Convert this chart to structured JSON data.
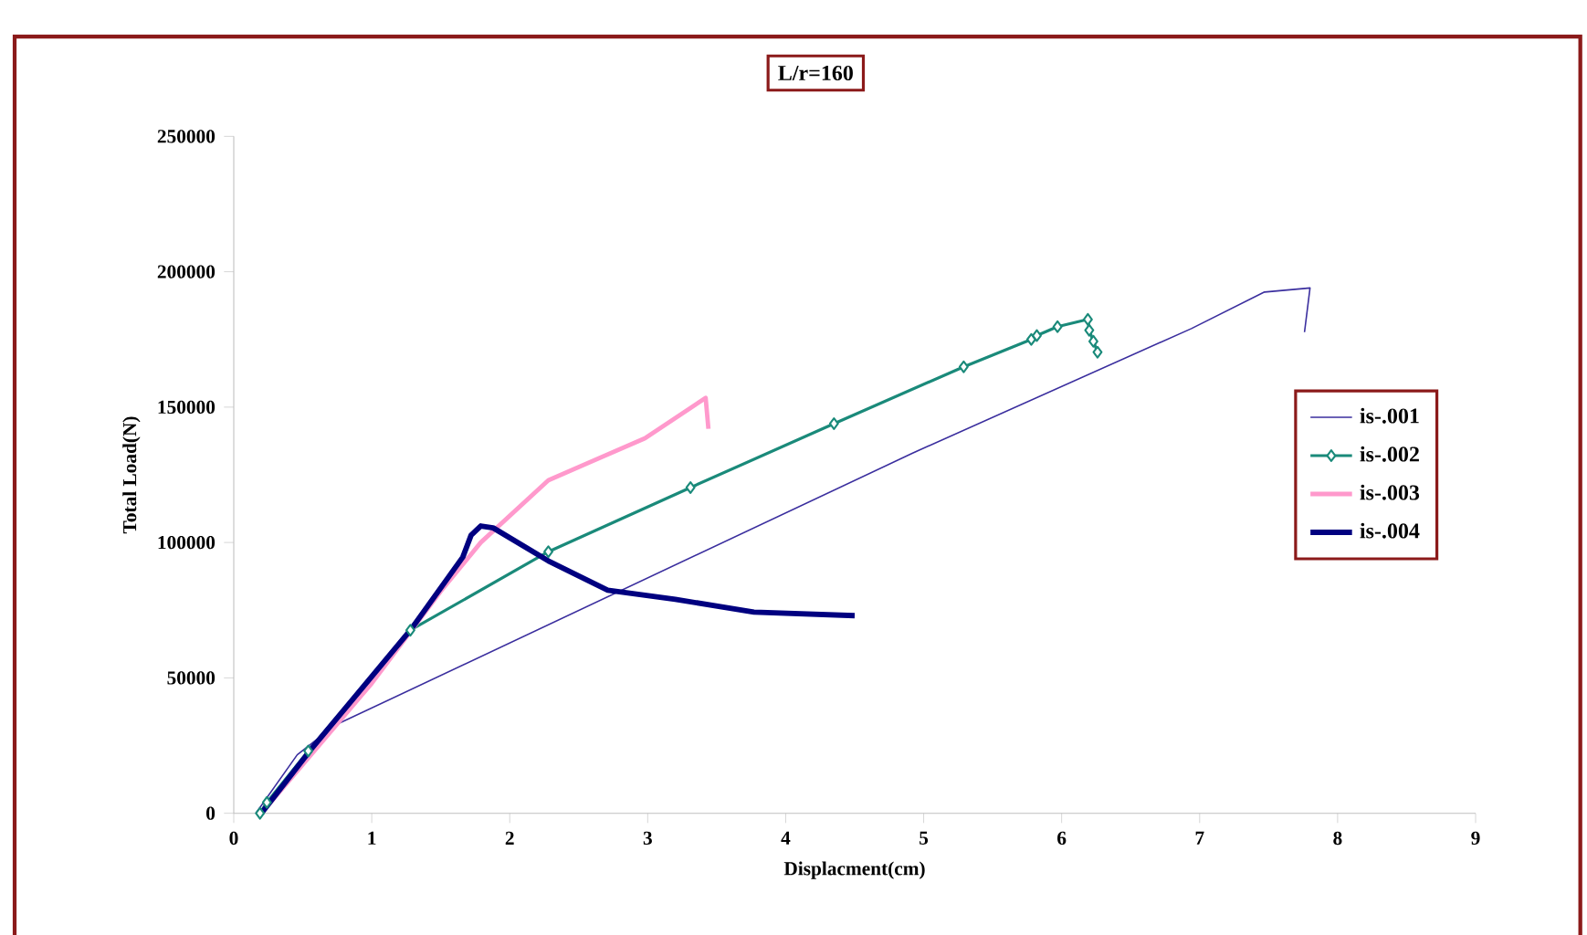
{
  "chart_data": {
    "type": "line",
    "title": "L/r=160",
    "xlabel": "Displacment(cm)",
    "ylabel": "Total Load(N)",
    "xlim": [
      0,
      9
    ],
    "xticks": [
      0,
      1,
      2,
      3,
      4,
      5,
      6,
      7,
      8,
      9
    ],
    "ylim": [
      0,
      250000
    ],
    "yticks": [
      0,
      50000,
      100000,
      150000,
      200000,
      250000
    ],
    "grid": false,
    "legend": "right",
    "series": [
      {
        "name": "is-.001",
        "color": "#3a2e9e",
        "marker": "none",
        "x": [
          0.16,
          0.46,
          0.73,
          4.92,
          6.94,
          7.47,
          7.8,
          7.76
        ],
        "values": [
          0,
          21600,
          32400,
          133000,
          179000,
          192500,
          194000,
          177700
        ]
      },
      {
        "name": "is-.002",
        "color": "#1a8a7a",
        "marker": "diamond",
        "x": [
          0.19,
          0.24,
          0.54,
          1.28,
          2.28,
          3.31,
          4.35,
          5.29,
          5.78,
          5.82,
          5.97,
          6.19,
          6.2,
          6.23,
          6.26
        ],
        "values": [
          0,
          4000,
          23000,
          67600,
          96600,
          120300,
          143900,
          164900,
          175000,
          176400,
          179700,
          182400,
          178400,
          174300,
          170300
        ]
      },
      {
        "name": "is-.003",
        "color": "#ff99cc",
        "marker": "none",
        "x": [
          0.2,
          0.55,
          1.0,
          1.5,
          1.79,
          2.28,
          2.98,
          3.42,
          3.44
        ],
        "values": [
          0,
          null,
          48000,
          82000,
          100000,
          123000,
          138500,
          153400,
          142000
        ]
      },
      {
        "name": "is-.004",
        "color": "#000080",
        "marker": "none",
        "x": [
          0.2,
          0.56,
          1.28,
          1.66,
          1.72,
          1.79,
          1.88,
          2.28,
          2.71,
          3.2,
          3.77,
          4.5
        ],
        "values": [
          0,
          23600,
          67600,
          94600,
          102700,
          106100,
          105400,
          93200,
          82400,
          79000,
          74300,
          73000
        ]
      }
    ]
  }
}
